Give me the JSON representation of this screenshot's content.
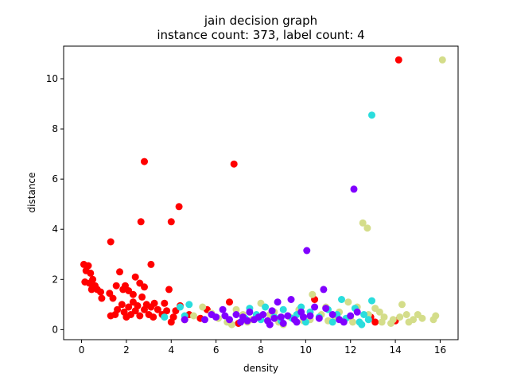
{
  "chart_data": {
    "type": "scatter",
    "title": "jain decision graph",
    "subtitle": "instance count: 373, label count: 4",
    "xlabel": "density",
    "ylabel": "distance",
    "xlim": [
      -0.8,
      16.8
    ],
    "ylim": [
      -0.4,
      11.3
    ],
    "xticks": [
      0,
      2,
      4,
      6,
      8,
      10,
      12,
      14,
      16
    ],
    "yticks": [
      0,
      2,
      4,
      6,
      8,
      10
    ],
    "grid": false,
    "legend": "none",
    "series": [
      {
        "color": "#ff0000",
        "points": [
          [
            0.1,
            2.6
          ],
          [
            0.3,
            2.55
          ],
          [
            0.2,
            2.35
          ],
          [
            0.4,
            2.25
          ],
          [
            0.15,
            1.9
          ],
          [
            0.35,
            1.85
          ],
          [
            0.5,
            2.0
          ],
          [
            0.6,
            1.75
          ],
          [
            0.45,
            1.6
          ],
          [
            0.7,
            1.6
          ],
          [
            0.85,
            1.5
          ],
          [
            0.9,
            1.25
          ],
          [
            1.3,
            3.5
          ],
          [
            1.25,
            1.45
          ],
          [
            1.4,
            1.25
          ],
          [
            1.55,
            1.75
          ],
          [
            1.7,
            2.3
          ],
          [
            1.85,
            1.6
          ],
          [
            1.95,
            1.75
          ],
          [
            2.1,
            1.55
          ],
          [
            2.3,
            1.4
          ],
          [
            2.4,
            2.1
          ],
          [
            2.6,
            1.85
          ],
          [
            2.8,
            1.7
          ],
          [
            2.9,
            1.0
          ],
          [
            3.1,
            2.6
          ],
          [
            3.25,
            1.05
          ],
          [
            1.3,
            0.55
          ],
          [
            1.5,
            0.6
          ],
          [
            1.6,
            0.8
          ],
          [
            1.8,
            1.0
          ],
          [
            1.9,
            0.7
          ],
          [
            2.0,
            0.5
          ],
          [
            2.1,
            0.9
          ],
          [
            2.2,
            0.6
          ],
          [
            2.3,
            1.1
          ],
          [
            2.4,
            0.75
          ],
          [
            2.5,
            0.95
          ],
          [
            2.6,
            0.55
          ],
          [
            2.7,
            1.3
          ],
          [
            2.8,
            0.8
          ],
          [
            3.0,
            0.6
          ],
          [
            3.1,
            0.9
          ],
          [
            3.2,
            0.5
          ],
          [
            3.4,
            0.8
          ],
          [
            3.6,
            0.6
          ],
          [
            3.7,
            1.05
          ],
          [
            3.8,
            0.75
          ],
          [
            3.9,
            1.6
          ],
          [
            4.0,
            0.3
          ],
          [
            4.1,
            0.5
          ],
          [
            4.2,
            0.75
          ],
          [
            4.4,
            0.95
          ],
          [
            4.6,
            0.4
          ],
          [
            4.8,
            0.6
          ],
          [
            2.8,
            6.7
          ],
          [
            2.65,
            4.3
          ],
          [
            4.0,
            4.3
          ],
          [
            4.35,
            4.9
          ],
          [
            6.8,
            6.6
          ],
          [
            14.15,
            10.75
          ],
          [
            5.3,
            0.45
          ],
          [
            5.6,
            0.8
          ],
          [
            6.6,
            1.1
          ],
          [
            7.0,
            0.25
          ],
          [
            10.4,
            1.2
          ],
          [
            13.1,
            0.3
          ],
          [
            14.0,
            0.35
          ],
          [
            12.9,
            0.5
          ]
        ]
      },
      {
        "color": "#d4dd8a",
        "points": [
          [
            16.1,
            10.75
          ],
          [
            12.55,
            4.25
          ],
          [
            12.75,
            4.05
          ],
          [
            10.3,
            1.4
          ],
          [
            11.9,
            1.1
          ],
          [
            12.3,
            0.9
          ],
          [
            13.1,
            0.85
          ],
          [
            13.5,
            0.5
          ],
          [
            14.3,
            1.0
          ],
          [
            14.5,
            0.6
          ],
          [
            14.8,
            0.4
          ],
          [
            15.0,
            0.6
          ],
          [
            15.7,
            0.4
          ],
          [
            15.8,
            0.55
          ],
          [
            13.4,
            0.3
          ],
          [
            13.9,
            0.4
          ],
          [
            14.2,
            0.5
          ],
          [
            14.6,
            0.3
          ],
          [
            12.8,
            0.6
          ],
          [
            12.0,
            0.5
          ],
          [
            11.5,
            0.7
          ],
          [
            11.0,
            0.35
          ],
          [
            10.7,
            0.6
          ],
          [
            10.2,
            0.4
          ],
          [
            9.7,
            0.8
          ],
          [
            9.3,
            0.5
          ],
          [
            8.8,
            0.3
          ],
          [
            8.4,
            0.6
          ],
          [
            8.0,
            1.05
          ],
          [
            7.6,
            0.4
          ],
          [
            7.2,
            0.6
          ],
          [
            6.9,
            0.8
          ],
          [
            6.5,
            0.3
          ],
          [
            6.1,
            0.45
          ],
          [
            5.8,
            0.65
          ],
          [
            5.4,
            0.9
          ],
          [
            5.0,
            0.55
          ],
          [
            6.7,
            0.2
          ],
          [
            7.4,
            0.3
          ],
          [
            8.6,
            0.7
          ],
          [
            9.0,
            0.2
          ],
          [
            9.9,
            0.35
          ],
          [
            10.9,
            0.9
          ],
          [
            11.3,
            0.5
          ],
          [
            12.1,
            0.3
          ],
          [
            13.3,
            0.7
          ],
          [
            13.8,
            0.25
          ],
          [
            15.2,
            0.45
          ]
        ]
      },
      {
        "color": "#2adddd",
        "points": [
          [
            12.95,
            8.55
          ],
          [
            12.95,
            1.15
          ],
          [
            11.6,
            1.2
          ],
          [
            12.2,
            0.85
          ],
          [
            12.6,
            0.6
          ],
          [
            12.8,
            0.4
          ],
          [
            12.4,
            0.3
          ],
          [
            11.8,
            0.45
          ],
          [
            11.4,
            0.6
          ],
          [
            11.0,
            0.8
          ],
          [
            10.6,
            0.5
          ],
          [
            10.2,
            0.7
          ],
          [
            9.8,
            0.9
          ],
          [
            9.4,
            0.45
          ],
          [
            9.0,
            0.8
          ],
          [
            8.6,
            0.5
          ],
          [
            8.2,
            0.9
          ],
          [
            7.8,
            0.6
          ],
          [
            7.5,
            0.85
          ],
          [
            7.3,
            0.45
          ],
          [
            10.0,
            0.3
          ],
          [
            9.6,
            0.6
          ],
          [
            8.9,
            0.35
          ],
          [
            8.0,
            0.4
          ],
          [
            4.4,
            0.9
          ],
          [
            4.8,
            1.0
          ],
          [
            3.7,
            0.5
          ],
          [
            4.6,
            0.55
          ],
          [
            12.5,
            0.2
          ],
          [
            11.2,
            0.3
          ]
        ]
      },
      {
        "color": "#8000ff",
        "points": [
          [
            12.15,
            5.6
          ],
          [
            10.05,
            3.15
          ],
          [
            10.8,
            1.6
          ],
          [
            9.35,
            1.2
          ],
          [
            8.75,
            1.1
          ],
          [
            10.4,
            0.9
          ],
          [
            9.8,
            0.7
          ],
          [
            9.5,
            0.4
          ],
          [
            9.2,
            0.55
          ],
          [
            8.9,
            0.5
          ],
          [
            8.5,
            0.75
          ],
          [
            8.3,
            0.35
          ],
          [
            8.1,
            0.6
          ],
          [
            7.9,
            0.5
          ],
          [
            7.7,
            0.4
          ],
          [
            7.5,
            0.7
          ],
          [
            7.2,
            0.5
          ],
          [
            6.9,
            0.6
          ],
          [
            6.6,
            0.4
          ],
          [
            6.3,
            0.8
          ],
          [
            6.0,
            0.5
          ],
          [
            5.8,
            0.6
          ],
          [
            5.5,
            0.4
          ],
          [
            10.2,
            0.55
          ],
          [
            10.6,
            0.45
          ],
          [
            10.9,
            0.85
          ],
          [
            11.2,
            0.6
          ],
          [
            11.5,
            0.4
          ],
          [
            11.7,
            0.3
          ],
          [
            12.0,
            0.55
          ],
          [
            12.3,
            0.7
          ],
          [
            8.4,
            0.2
          ],
          [
            9.0,
            0.25
          ],
          [
            9.6,
            0.3
          ],
          [
            7.1,
            0.3
          ],
          [
            6.4,
            0.55
          ],
          [
            4.6,
            0.4
          ],
          [
            8.6,
            0.45
          ],
          [
            7.4,
            0.35
          ],
          [
            9.9,
            0.5
          ]
        ]
      }
    ]
  }
}
